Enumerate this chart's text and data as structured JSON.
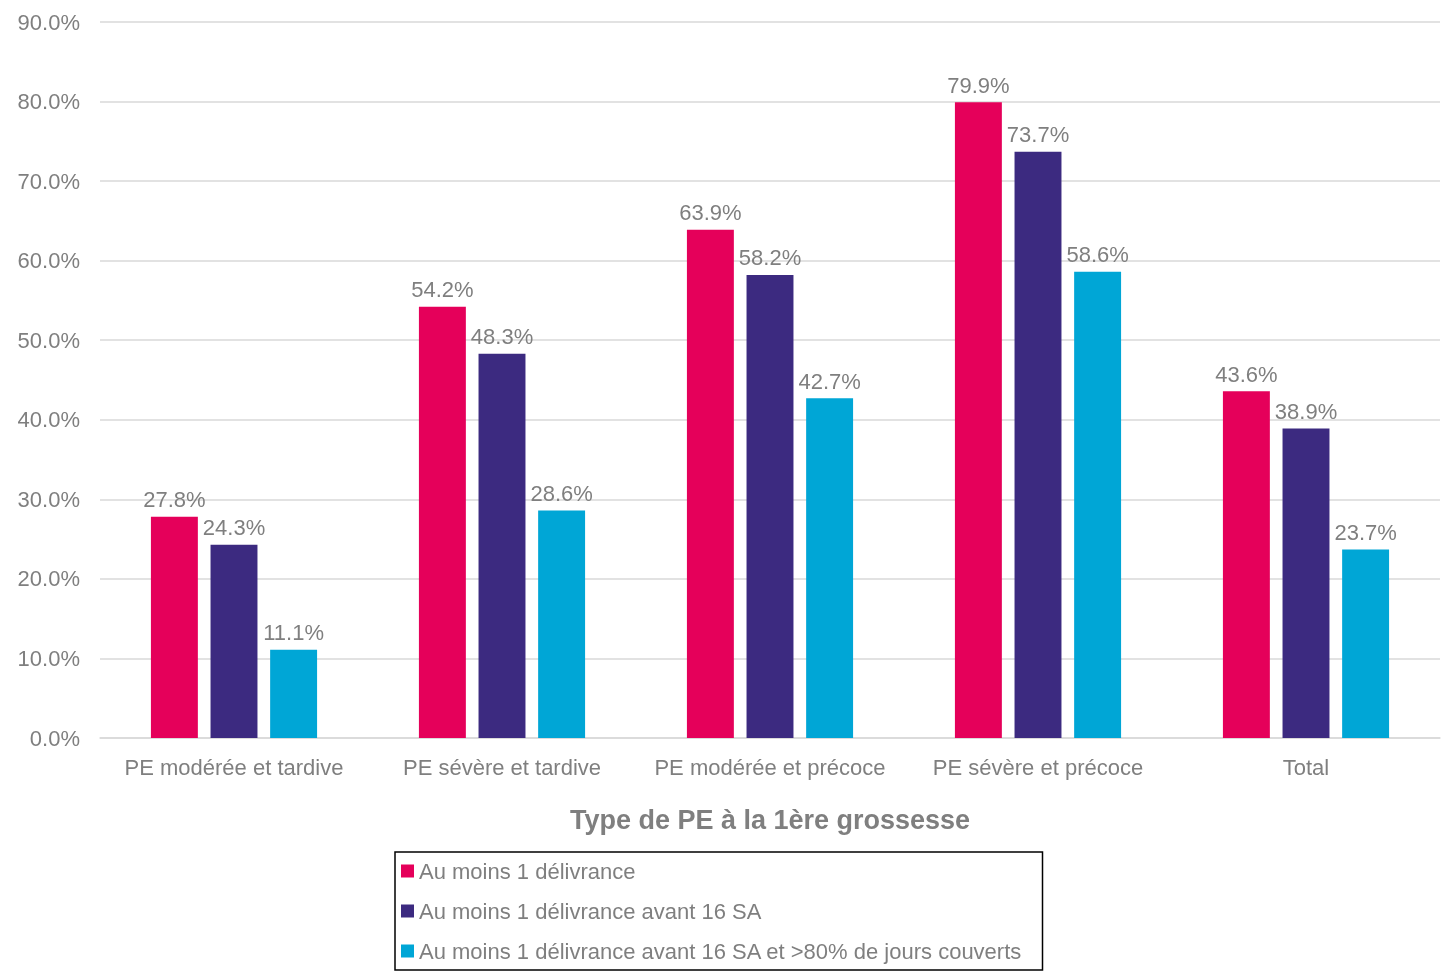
{
  "chart_data": {
    "type": "bar",
    "xlabel": "Type de PE à la 1ère grossesse",
    "categories": [
      "PE modérée et tardive",
      "PE sévère et tardive",
      "PE modérée et précoce",
      "PE sévère et précoce",
      "Total"
    ],
    "series": [
      {
        "name": "Au moins 1 délivrance",
        "color": "#e5005a",
        "values": [
          27.8,
          54.2,
          63.9,
          79.9,
          43.6
        ],
        "value_labels": [
          "27.8%",
          "54.2%",
          "63.9%",
          "79.9%",
          "43.6%"
        ]
      },
      {
        "name": "Au moins 1 délivrance avant 16 SA",
        "color": "#3c2a80",
        "values": [
          24.3,
          48.3,
          58.2,
          73.7,
          38.9
        ],
        "value_labels": [
          "24.3%",
          "48.3%",
          "58.2%",
          "73.7%",
          "38.9%"
        ]
      },
      {
        "name": "Au moins 1 délivrance avant 16 SA et >80% de jours couverts",
        "color": "#00a6d6",
        "values": [
          11.1,
          28.6,
          42.7,
          58.6,
          23.7
        ],
        "value_labels": [
          "11.1%",
          "28.6%",
          "42.7%",
          "58.6%",
          "23.7%"
        ]
      }
    ],
    "ylim": [
      0,
      90
    ],
    "yticks": [
      {
        "value": 0,
        "label": "0.0%"
      },
      {
        "value": 10,
        "label": "10.0%"
      },
      {
        "value": 20,
        "label": "20.0%"
      },
      {
        "value": 30,
        "label": "30.0%"
      },
      {
        "value": 40,
        "label": "40.0%"
      },
      {
        "value": 50,
        "label": "50.0%"
      },
      {
        "value": 60,
        "label": "60.0%"
      },
      {
        "value": 70,
        "label": "70.0%"
      },
      {
        "value": 80,
        "label": "80.0%"
      },
      {
        "value": 90,
        "label": "90.0%"
      }
    ],
    "grid": "y",
    "legend": "bottom"
  }
}
